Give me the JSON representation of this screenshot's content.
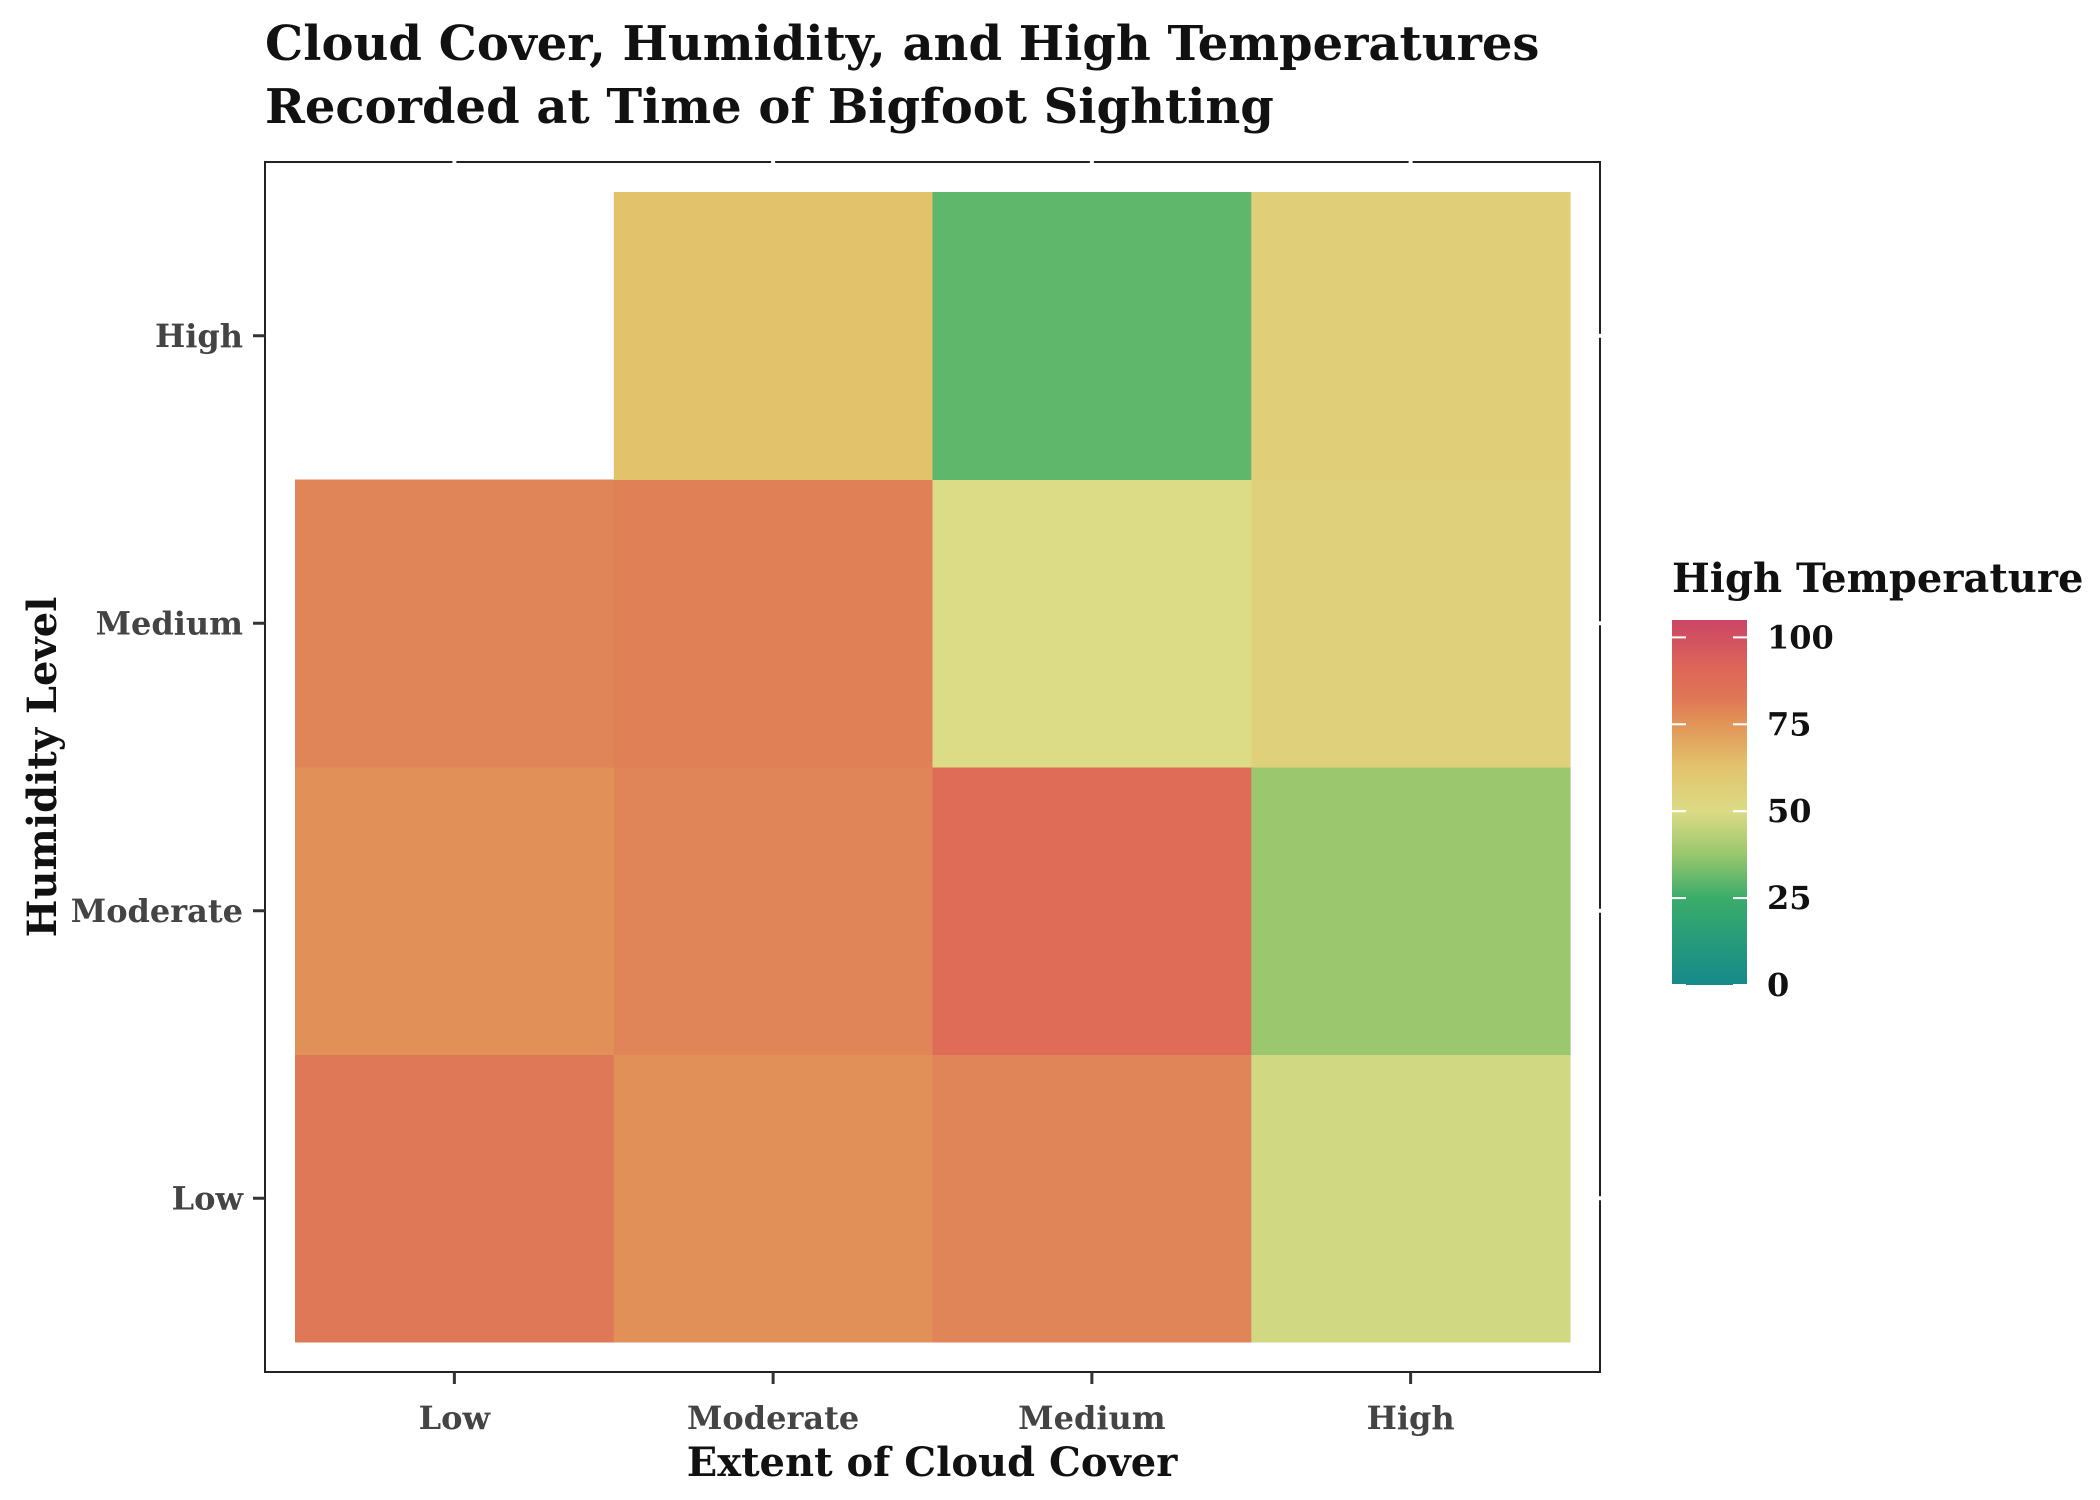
{
  "chart_data": {
    "type": "heatmap",
    "title_lines": [
      "Cloud Cover, Humidity, and High Temperatures",
      "Recorded at Time of Bigfoot Sighting"
    ],
    "xlabel": "Extent of Cloud Cover",
    "ylabel": "Humidity Level",
    "x_categories": [
      "Low",
      "Moderate",
      "Medium",
      "High"
    ],
    "y_categories": [
      "Low",
      "Moderate",
      "Medium",
      "High"
    ],
    "cells": [
      {
        "x": "Low",
        "y": "Low",
        "value": 82
      },
      {
        "x": "Moderate",
        "y": "Low",
        "value": 76
      },
      {
        "x": "Medium",
        "y": "Low",
        "value": 79
      },
      {
        "x": "High",
        "y": "Low",
        "value": 48
      },
      {
        "x": "Low",
        "y": "Moderate",
        "value": 76
      },
      {
        "x": "Moderate",
        "y": "Moderate",
        "value": 79
      },
      {
        "x": "Medium",
        "y": "Moderate",
        "value": 88
      },
      {
        "x": "High",
        "y": "Moderate",
        "value": 38
      },
      {
        "x": "Low",
        "y": "Medium",
        "value": 79
      },
      {
        "x": "Moderate",
        "y": "Medium",
        "value": 80
      },
      {
        "x": "Medium",
        "y": "Medium",
        "value": 50
      },
      {
        "x": "High",
        "y": "Medium",
        "value": 55
      },
      {
        "x": "Moderate",
        "y": "High",
        "value": 63
      },
      {
        "x": "Medium",
        "y": "High",
        "value": 30
      },
      {
        "x": "High",
        "y": "High",
        "value": 57
      }
    ],
    "legend": {
      "title": "High Temperature",
      "min": 0,
      "max": 105,
      "ticks": [
        0,
        25,
        50,
        75,
        100
      ],
      "tick_labels": [
        "0",
        "25",
        "50",
        "75",
        "100"
      ],
      "placement": "right"
    },
    "color_stops": [
      {
        "value": 0,
        "color": "#15898a"
      },
      {
        "value": 25,
        "color": "#3aac6a"
      },
      {
        "value": 38,
        "color": "#9bc86e"
      },
      {
        "value": 50,
        "color": "#dcdb86"
      },
      {
        "value": 63,
        "color": "#e3c26c"
      },
      {
        "value": 76,
        "color": "#e19157"
      },
      {
        "value": 82,
        "color": "#df7856"
      },
      {
        "value": 90,
        "color": "#de6857"
      },
      {
        "value": 105,
        "color": "#cb4566"
      }
    ],
    "grid": false
  }
}
